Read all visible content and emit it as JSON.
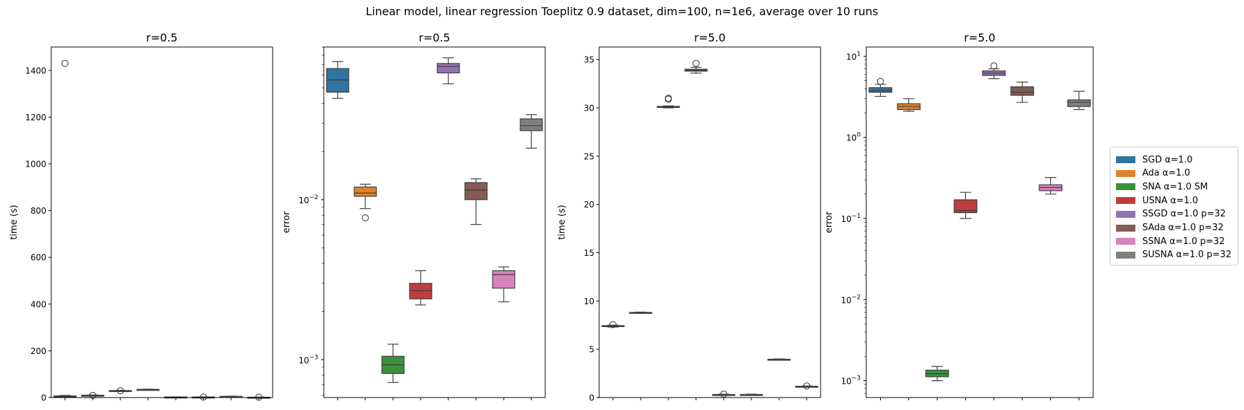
{
  "figure": {
    "suptitle": "Linear model, linear regression Toeplitz 0.9 dataset, dim=100, n=1e6, average over 10 runs"
  },
  "legend": {
    "entries": [
      {
        "label": "SGD α=1.0",
        "color": "#3274a1"
      },
      {
        "label": "Ada α=1.0",
        "color": "#e1812c"
      },
      {
        "label": "SNA α=1.0 SM",
        "color": "#3a923a"
      },
      {
        "label": "USNA α=1.0",
        "color": "#c03d3e"
      },
      {
        "label": "SSGD α=1.0 p=32",
        "color": "#9372b2"
      },
      {
        "label": "SAda α=1.0 p=32",
        "color": "#845b53"
      },
      {
        "label": "SSNA α=1.0 p=32",
        "color": "#d684bd"
      },
      {
        "label": "SUSNA α=1.0 p=32",
        "color": "#7f7f7f"
      }
    ]
  },
  "chart_data": [
    {
      "type": "box",
      "title": "r=0.5",
      "ylabel": "time (s)",
      "yscale": "linear",
      "ylim": [
        0,
        1500
      ],
      "yticks": [
        0,
        200,
        400,
        600,
        800,
        1000,
        1200,
        1400
      ],
      "ytick_labels": [
        "0",
        "200",
        "400",
        "600",
        "800",
        "1000",
        "1200",
        "1400"
      ],
      "boxes": [
        {
          "series": "SGD α=1.0",
          "whislo": 4,
          "q1": 5,
          "med": 6,
          "q3": 7,
          "whishi": 9,
          "fliers": [
            1430
          ]
        },
        {
          "series": "Ada α=1.0",
          "whislo": 7,
          "q1": 8,
          "med": 9,
          "q3": 10,
          "whishi": 11,
          "fliers": [
            9
          ]
        },
        {
          "series": "SNA α=1.0 SM",
          "whislo": 27,
          "q1": 28,
          "med": 29,
          "q3": 30,
          "whishi": 31,
          "fliers": [
            29
          ]
        },
        {
          "series": "USNA α=1.0",
          "whislo": 33,
          "q1": 34,
          "med": 35,
          "q3": 35,
          "whishi": 36,
          "fliers": []
        },
        {
          "series": "SSGD α=1.0 p=32",
          "whislo": 1,
          "q1": 1.5,
          "med": 2,
          "q3": 2.5,
          "whishi": 3,
          "fliers": []
        },
        {
          "series": "SAda α=1.0 p=32",
          "whislo": 1,
          "q1": 1.5,
          "med": 2,
          "q3": 2.5,
          "whishi": 3,
          "fliers": [
            2
          ]
        },
        {
          "series": "SSNA α=1.0 p=32",
          "whislo": 3,
          "q1": 4,
          "med": 4.5,
          "q3": 5,
          "whishi": 6,
          "fliers": []
        },
        {
          "series": "SUSNA α=1.0 p=32",
          "whislo": 0.5,
          "q1": 1,
          "med": 1.2,
          "q3": 1.5,
          "whishi": 2,
          "fliers": [
            1.3
          ]
        }
      ]
    },
    {
      "type": "box",
      "title": "r=0.5",
      "ylabel": "error",
      "yscale": "log",
      "ylim": [
        0.00058,
        0.09
      ],
      "yticks": [
        0.001,
        0.01
      ],
      "ytick_labels": [
        "10^-3",
        "10^-2"
      ],
      "boxes": [
        {
          "series": "SGD α=1.0",
          "whislo": 0.043,
          "q1": 0.047,
          "med": 0.056,
          "q3": 0.066,
          "whishi": 0.073,
          "fliers": []
        },
        {
          "series": "Ada α=1.0",
          "whislo": 0.0088,
          "q1": 0.0105,
          "med": 0.011,
          "q3": 0.012,
          "whishi": 0.0125,
          "fliers": [
            0.0077
          ]
        },
        {
          "series": "SNA α=1.0 SM",
          "whislo": 0.00072,
          "q1": 0.00082,
          "med": 0.00093,
          "q3": 0.00105,
          "whishi": 0.00125,
          "fliers": []
        },
        {
          "series": "USNA α=1.0",
          "whislo": 0.0022,
          "q1": 0.0024,
          "med": 0.0027,
          "q3": 0.003,
          "whishi": 0.0036,
          "fliers": []
        },
        {
          "series": "SSGD α=1.0 p=32",
          "whislo": 0.053,
          "q1": 0.062,
          "med": 0.068,
          "q3": 0.071,
          "whishi": 0.077,
          "fliers": []
        },
        {
          "series": "SAda α=1.0 p=32",
          "whislo": 0.007,
          "q1": 0.01,
          "med": 0.0115,
          "q3": 0.0128,
          "whishi": 0.0135,
          "fliers": []
        },
        {
          "series": "SSNA α=1.0 p=32",
          "whislo": 0.0023,
          "q1": 0.0028,
          "med": 0.0034,
          "q3": 0.0036,
          "whishi": 0.0038,
          "fliers": []
        },
        {
          "series": "SUSNA α=1.0 p=32",
          "whislo": 0.021,
          "q1": 0.027,
          "med": 0.029,
          "q3": 0.032,
          "whishi": 0.034,
          "fliers": []
        }
      ]
    },
    {
      "type": "box",
      "title": "r=5.0",
      "ylabel": "time (s)",
      "yscale": "linear",
      "ylim": [
        0,
        36.3
      ],
      "yticks": [
        0,
        5,
        10,
        15,
        20,
        25,
        30,
        35
      ],
      "ytick_labels": [
        "0",
        "5",
        "10",
        "15",
        "20",
        "25",
        "30",
        "35"
      ],
      "boxes": [
        {
          "series": "SGD α=1.0",
          "whislo": 7.3,
          "q1": 7.35,
          "med": 7.4,
          "q3": 7.45,
          "whishi": 7.5,
          "fliers": [
            7.55
          ]
        },
        {
          "series": "Ada α=1.0",
          "whislo": 8.75,
          "q1": 8.78,
          "med": 8.8,
          "q3": 8.82,
          "whishi": 8.85,
          "fliers": []
        },
        {
          "series": "SNA α=1.0 SM",
          "whislo": 30.0,
          "q1": 30.05,
          "med": 30.1,
          "q3": 30.15,
          "whishi": 30.2,
          "fliers": [
            30.9,
            31.0
          ]
        },
        {
          "series": "USNA α=1.0",
          "whislo": 33.6,
          "q1": 33.8,
          "med": 33.9,
          "q3": 34.0,
          "whishi": 34.2,
          "fliers": [
            34.6
          ]
        },
        {
          "series": "SSGD α=1.0 p=32",
          "whislo": 0.25,
          "q1": 0.28,
          "med": 0.3,
          "q3": 0.32,
          "whishi": 0.35,
          "fliers": [
            0.35
          ]
        },
        {
          "series": "SAda α=1.0 p=32",
          "whislo": 0.25,
          "q1": 0.28,
          "med": 0.3,
          "q3": 0.32,
          "whishi": 0.35,
          "fliers": []
        },
        {
          "series": "SSNA α=1.0 p=32",
          "whislo": 3.9,
          "q1": 3.93,
          "med": 3.95,
          "q3": 3.97,
          "whishi": 4.0,
          "fliers": []
        },
        {
          "series": "SUSNA α=1.0 p=32",
          "whislo": 1.1,
          "q1": 1.13,
          "med": 1.15,
          "q3": 1.17,
          "whishi": 1.2,
          "fliers": [
            1.2
          ]
        }
      ]
    },
    {
      "type": "box",
      "title": "r=5.0",
      "ylabel": "error",
      "yscale": "log",
      "ylim": [
        0.00062,
        13
      ],
      "yticks": [
        0.001,
        0.01,
        0.1,
        1,
        10
      ],
      "ytick_labels": [
        "10^-3",
        "10^-2",
        "10^-1",
        "10^0",
        "10^1"
      ],
      "boxes": [
        {
          "series": "SGD α=1.0",
          "whislo": 3.2,
          "q1": 3.6,
          "med": 3.8,
          "q3": 4.1,
          "whishi": 4.5,
          "fliers": [
            4.9
          ]
        },
        {
          "series": "Ada α=1.0",
          "whislo": 2.1,
          "q1": 2.2,
          "med": 2.4,
          "q3": 2.6,
          "whishi": 3.0,
          "fliers": []
        },
        {
          "series": "SNA α=1.0 SM",
          "whislo": 0.001,
          "q1": 0.00112,
          "med": 0.00122,
          "q3": 0.00135,
          "whishi": 0.0015,
          "fliers": []
        },
        {
          "series": "USNA α=1.0",
          "whislo": 0.1,
          "q1": 0.118,
          "med": 0.125,
          "q3": 0.17,
          "whishi": 0.21,
          "fliers": []
        },
        {
          "series": "SSGD α=1.0 p=32",
          "whislo": 5.3,
          "q1": 5.8,
          "med": 6.2,
          "q3": 6.6,
          "whishi": 7.0,
          "fliers": [
            7.6
          ]
        },
        {
          "series": "SAda α=1.0 p=32",
          "whislo": 2.7,
          "q1": 3.3,
          "med": 3.6,
          "q3": 4.2,
          "whishi": 4.8,
          "fliers": []
        },
        {
          "series": "SSNA α=1.0 p=32",
          "whislo": 0.2,
          "q1": 0.22,
          "med": 0.24,
          "q3": 0.26,
          "whishi": 0.32,
          "fliers": []
        },
        {
          "series": "SUSNA α=1.0 p=32",
          "whislo": 2.2,
          "q1": 2.4,
          "med": 2.7,
          "q3": 2.9,
          "whishi": 3.7,
          "fliers": []
        }
      ]
    }
  ]
}
